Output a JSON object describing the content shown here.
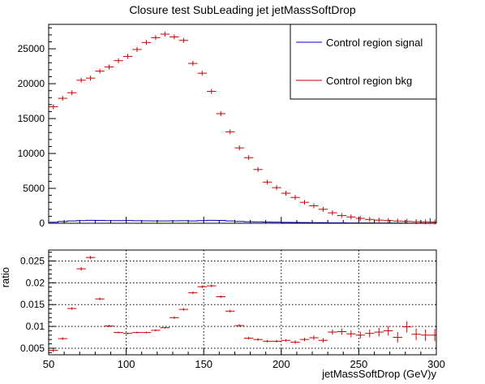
{
  "title": "Closure test SubLeading jet jetMassSoftDrop",
  "chart_data": [
    {
      "type": "line",
      "panel": "main",
      "xlim": [
        50,
        300
      ],
      "ylim": [
        0,
        28500
      ],
      "yticks": [
        0,
        5000,
        10000,
        15000,
        20000,
        25000
      ],
      "ytick_labels": [
        "0",
        "5000",
        "10000",
        "15000",
        "20000",
        "25000"
      ],
      "bin_width": 6,
      "legend_placement": "top-right",
      "series": [
        {
          "name": "Control region signal",
          "color": "#0000cc",
          "style": "histogram",
          "x": [
            53,
            59,
            65,
            71,
            77,
            83,
            89,
            95,
            101,
            107,
            113,
            119,
            125,
            131,
            137,
            143,
            149,
            155,
            161,
            167,
            173,
            179,
            185,
            191,
            197,
            203,
            209,
            215,
            221,
            227,
            233,
            239,
            245,
            251,
            257,
            263,
            269,
            275,
            281,
            287,
            293,
            299
          ],
          "values": [
            150,
            250,
            330,
            380,
            420,
            400,
            380,
            380,
            390,
            360,
            350,
            330,
            340,
            350,
            360,
            340,
            380,
            420,
            400,
            330,
            260,
            220,
            200,
            170,
            160,
            130,
            110,
            100,
            90,
            80,
            60,
            60,
            50,
            40,
            40,
            30,
            30,
            30,
            20,
            20,
            20,
            20
          ]
        },
        {
          "name": "Control region bkg",
          "color": "#cc0000",
          "style": "markers",
          "x": [
            53,
            59,
            65,
            71,
            77,
            83,
            89,
            95,
            101,
            107,
            113,
            119,
            125,
            131,
            137,
            143,
            149,
            155,
            161,
            167,
            173,
            179,
            185,
            191,
            197,
            203,
            209,
            215,
            221,
            227,
            233,
            239,
            245,
            251,
            257,
            263,
            269,
            275,
            281,
            287,
            293,
            299
          ],
          "values": [
            16700,
            17900,
            18700,
            20500,
            20800,
            21800,
            22400,
            23300,
            23900,
            24900,
            25900,
            26600,
            27100,
            26700,
            26200,
            22900,
            21500,
            18900,
            15700,
            13100,
            10800,
            9400,
            7700,
            5900,
            5100,
            4300,
            3700,
            3000,
            2500,
            2000,
            1500,
            1100,
            900,
            700,
            550,
            450,
            380,
            320,
            270,
            230,
            200,
            180
          ]
        }
      ]
    },
    {
      "type": "scatter",
      "panel": "ratio",
      "ylabel": "ratio",
      "xlabel": "jetMassSoftDrop (GeV)y",
      "xlim": [
        50,
        300
      ],
      "ylim": [
        0.0035,
        0.0275
      ],
      "grid": true,
      "xticks": [
        50,
        100,
        150,
        200,
        250,
        300
      ],
      "xtick_labels": [
        "50",
        "100",
        "150",
        "200",
        "250",
        "300"
      ],
      "yticks": [
        0.005,
        0.01,
        0.015,
        0.02,
        0.025
      ],
      "ytick_labels": [
        "0.005",
        "0.01",
        "0.015",
        "0.02",
        "0.025"
      ],
      "series": [
        {
          "color": "#cc0000",
          "x": [
            53,
            59,
            65,
            71,
            77,
            83,
            89,
            95,
            101,
            107,
            113,
            119,
            125,
            131,
            137,
            143,
            149,
            155,
            161,
            167,
            173,
            179,
            185,
            191,
            197,
            203,
            209,
            215,
            221,
            227,
            233,
            239,
            245,
            251,
            257,
            263,
            269,
            275,
            281,
            287,
            293,
            299
          ],
          "values": [
            0.0045,
            0.0072,
            0.0141,
            0.0232,
            0.0258,
            0.0163,
            0.0101,
            0.0086,
            0.0084,
            0.0086,
            0.0086,
            0.0091,
            0.0097,
            0.012,
            0.0139,
            0.0177,
            0.0191,
            0.0193,
            0.0168,
            0.0135,
            0.0102,
            0.0073,
            0.007,
            0.0066,
            0.0066,
            0.0068,
            0.0064,
            0.007,
            0.0074,
            0.0068,
            0.0087,
            0.0088,
            0.0083,
            0.008,
            0.0084,
            0.0087,
            0.009,
            0.0075,
            0.0099,
            0.0082,
            0.008,
            0.008
          ],
          "errors": [
            0.0004,
            0.0003,
            0.0003,
            0.0004,
            0.0004,
            0.0003,
            0.0003,
            0.0002,
            0.0002,
            0.0002,
            0.0002,
            0.0002,
            0.0002,
            0.0003,
            0.0003,
            0.0003,
            0.0003,
            0.0003,
            0.0003,
            0.0003,
            0.0003,
            0.0003,
            0.0003,
            0.0003,
            0.0003,
            0.0003,
            0.0004,
            0.0004,
            0.0005,
            0.0005,
            0.0006,
            0.0007,
            0.0008,
            0.0008,
            0.0009,
            0.001,
            0.0011,
            0.0012,
            0.0013,
            0.0013,
            0.0013,
            0.0014
          ]
        }
      ]
    }
  ]
}
